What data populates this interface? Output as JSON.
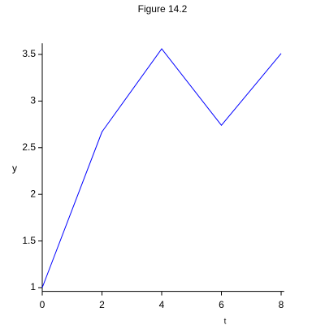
{
  "chart_data": {
    "type": "line",
    "title": "Figure 14.2",
    "x_label": "t",
    "y_label": "y",
    "x": [
      0,
      2,
      4,
      6,
      8
    ],
    "series": [
      {
        "name": "y",
        "color": "#0000ff",
        "values": [
          1,
          2.67,
          3.56,
          2.74,
          3.51
        ]
      }
    ],
    "xlim": [
      0,
      8.1
    ],
    "ylim": [
      0.96,
      3.62
    ],
    "xticks": [
      0,
      2,
      4,
      6,
      8
    ],
    "yticks": [
      1,
      1.5,
      2,
      2.5,
      3,
      3.5
    ],
    "grid": false
  }
}
